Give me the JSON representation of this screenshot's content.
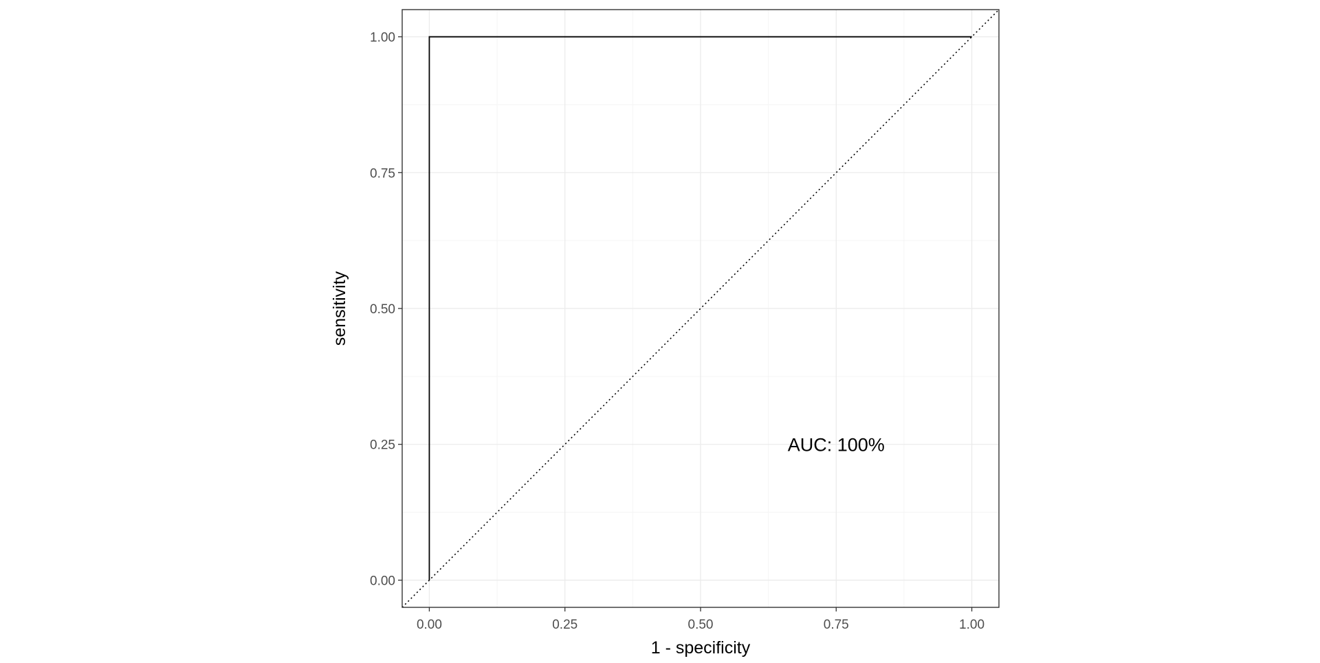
{
  "chart_data": {
    "type": "line",
    "title": "",
    "xlabel": "1 - specificity",
    "ylabel": "sensitivity",
    "xlim": [
      -0.05,
      1.05
    ],
    "ylim": [
      -0.05,
      1.05
    ],
    "x_ticks": [
      0.0,
      0.25,
      0.5,
      0.75,
      1.0
    ],
    "x_tick_labels": [
      "0.00",
      "0.25",
      "0.50",
      "0.75",
      "1.00"
    ],
    "y_ticks": [
      0.0,
      0.25,
      0.5,
      0.75,
      1.0
    ],
    "y_tick_labels": [
      "0.00",
      "0.25",
      "0.50",
      "0.75",
      "1.00"
    ],
    "grid": true,
    "legend": "none",
    "series": [
      {
        "style": "solid",
        "color": "#000000",
        "x": [
          0.0,
          0.0,
          1.0
        ],
        "y": [
          0.0,
          1.0,
          1.0
        ]
      },
      {
        "style": "dotted",
        "color": "#000000",
        "x": [
          -0.05,
          1.05
        ],
        "y": [
          -0.05,
          1.05
        ]
      }
    ],
    "annotations": [
      {
        "text": "AUC: 100%",
        "x": 0.75,
        "y": 0.25
      }
    ]
  },
  "colors": {
    "panel_border": "#333333",
    "grid_major": "#ebebeb",
    "grid_minor": "#f5f5f5",
    "line": "#000000"
  }
}
